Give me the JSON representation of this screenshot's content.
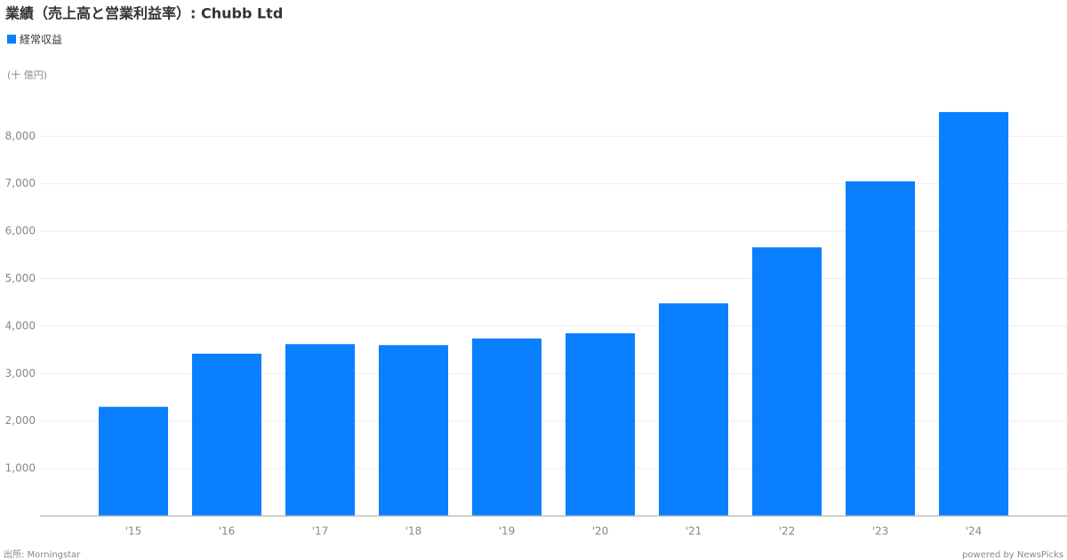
{
  "chart_data": {
    "type": "bar",
    "title": "業績（売上高と営業利益率）: Chubb Ltd",
    "unit_label": "(十 億円)",
    "source": "出所: Morningstar",
    "credit": "powered by NewsPicks",
    "categories": [
      "'15",
      "'16",
      "'17",
      "'18",
      "'19",
      "'20",
      "'21",
      "'22",
      "'23",
      "'24"
    ],
    "series": [
      {
        "name": "経常収益",
        "color": "#0a7fff",
        "values": [
          2300,
          3420,
          3620,
          3600,
          3740,
          3850,
          4480,
          5660,
          7050,
          8510
        ]
      }
    ],
    "ylim": [
      0,
      9000
    ],
    "yticks": [
      {
        "value": 1000,
        "label": "1,000"
      },
      {
        "value": 2000,
        "label": "2,000"
      },
      {
        "value": 3000,
        "label": "3,000"
      },
      {
        "value": 4000,
        "label": "4,000"
      },
      {
        "value": 5000,
        "label": "5,000"
      },
      {
        "value": 6000,
        "label": "6,000"
      },
      {
        "value": 7000,
        "label": "7,000"
      },
      {
        "value": 8000,
        "label": "8,000"
      }
    ],
    "grid": true
  }
}
